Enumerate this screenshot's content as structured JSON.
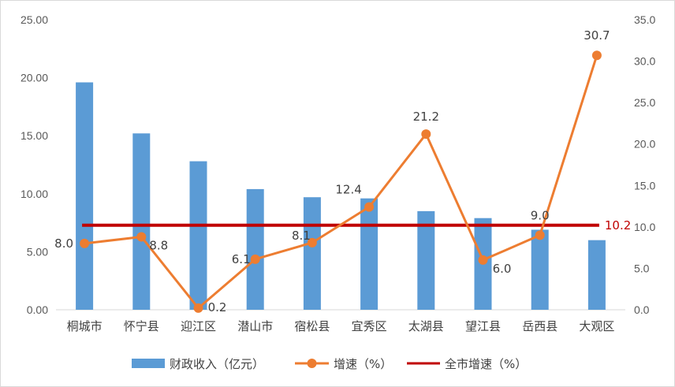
{
  "chart_data": {
    "type": "bar",
    "categories": [
      "桐城市",
      "怀宁县",
      "迎江区",
      "潜山市",
      "宿松县",
      "宜秀区",
      "太湖县",
      "望江县",
      "岳西县",
      "大观区"
    ],
    "series": [
      {
        "name": "财政收入（亿元）",
        "type": "bar",
        "axis": "left",
        "color": "#5b9bd5",
        "values": [
          19.6,
          15.2,
          12.8,
          10.4,
          9.7,
          9.6,
          8.5,
          7.9,
          6.9,
          6.0
        ]
      },
      {
        "name": "增速（%）",
        "type": "line",
        "axis": "right",
        "color": "#ed7d31",
        "values": [
          8.0,
          8.8,
          0.2,
          6.1,
          8.1,
          12.4,
          21.2,
          6.0,
          9.0,
          30.7
        ],
        "labels": [
          "8.0",
          "8.8",
          "0.2",
          "6.1",
          "8.1",
          "12.4",
          "21.2",
          "6.0",
          "9.0",
          "30.7"
        ]
      },
      {
        "name": "全市增速（%）",
        "type": "reference-line",
        "axis": "right",
        "color": "#c00000",
        "value": 10.2,
        "label": "10.2"
      }
    ],
    "y_left": {
      "ylim": [
        0,
        25
      ],
      "ticks": [
        "0.00",
        "5.00",
        "10.00",
        "15.00",
        "20.00",
        "25.00"
      ]
    },
    "y_right": {
      "ylim": [
        0,
        35
      ],
      "ticks": [
        "0.0",
        "5.0",
        "10.0",
        "15.0",
        "20.0",
        "25.0",
        "30.0",
        "35.0"
      ]
    },
    "grid": false,
    "legend": {
      "position": "bottom"
    },
    "title": "",
    "xlabel": "",
    "ylabel": ""
  }
}
